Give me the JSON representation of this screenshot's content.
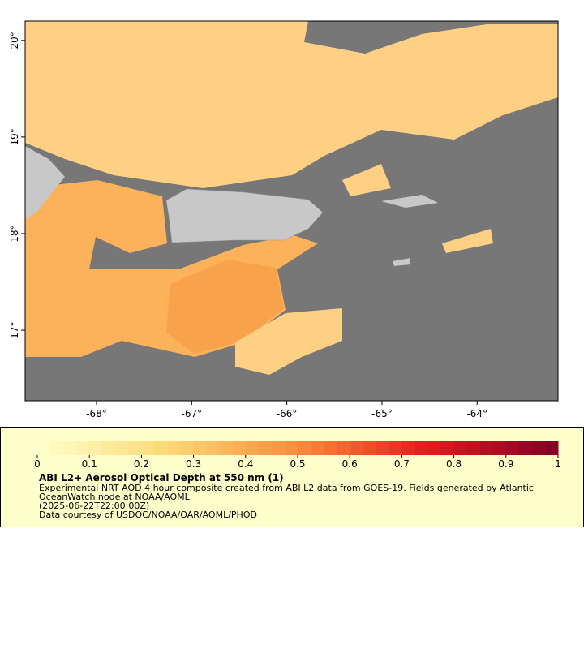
{
  "map": {
    "lonlim": [
      -68.75,
      -63.15
    ],
    "latlim": [
      16.27,
      20.2
    ],
    "xticks": [
      {
        "value": -68,
        "label": "-68°"
      },
      {
        "value": -67,
        "label": "-67°"
      },
      {
        "value": -66,
        "label": "-66°"
      },
      {
        "value": -65,
        "label": "-65°"
      },
      {
        "value": -64,
        "label": "-64°"
      }
    ],
    "yticks": [
      {
        "value": 17,
        "label": "17°"
      },
      {
        "value": 18,
        "label": "18°"
      },
      {
        "value": 19,
        "label": "19°"
      },
      {
        "value": 20,
        "label": "20°"
      }
    ]
  },
  "legend": {
    "range": [
      0,
      1
    ],
    "ticks": [
      0,
      0.1,
      0.2,
      0.3,
      0.4,
      0.5,
      0.6,
      0.7,
      0.8,
      0.9,
      1
    ],
    "title": "ABI L2+ Aerosol Optical Depth at 550 nm (1)",
    "lines": [
      "Experimental NRT AOD 4 hour composite created from ABI L2 data from GOES-19. Fields generated by Atlantic",
      "OceanWatch node at NOAA/AOML",
      "(2025-06-22T22:00:00Z)",
      "Data courtesy of USDOC/NOAA/OAR/AOML/PHOD"
    ]
  }
}
